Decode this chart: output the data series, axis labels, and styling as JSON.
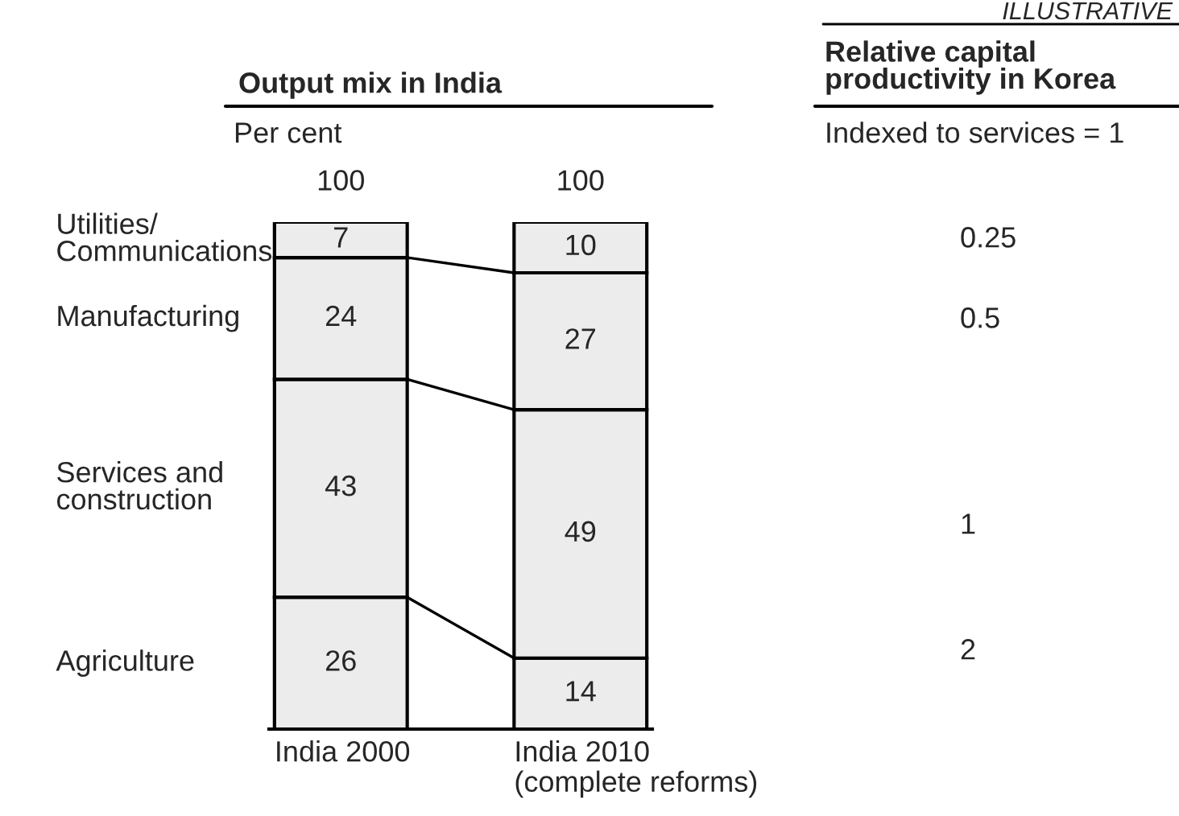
{
  "chart_data": {
    "type": "bar",
    "title": "Output mix in India",
    "ylabel": "Per cent",
    "categories": [
      "India 2000",
      "India 2010\n(complete reforms)"
    ],
    "stacked": true,
    "data_labels": true,
    "totals": [
      "100",
      "100"
    ],
    "series": [
      {
        "name": "Agriculture",
        "color": "#ececec",
        "values": [
          26,
          14
        ]
      },
      {
        "name": "Services and\nconstruction",
        "color": "#ececec",
        "values": [
          43,
          49
        ]
      },
      {
        "name": "Manufacturing",
        "color": "#ececec",
        "values": [
          24,
          27
        ]
      },
      {
        "name": "Utilities/\nCommunications",
        "color": "#ececec",
        "values": [
          7,
          10
        ]
      }
    ],
    "annotations": [
      "ILLUSTRATIVE",
      "Relative capital\nproductivity in Korea",
      "Indexed to services = 1",
      "2",
      "1",
      "0.5",
      "0.25"
    ],
    "legend": false
  }
}
